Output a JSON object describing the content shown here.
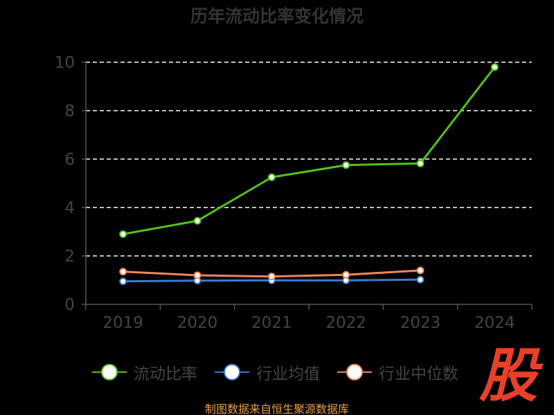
{
  "chart_data": {
    "type": "line",
    "title": "历年流动比率变化情况",
    "categories": [
      "2019",
      "2020",
      "2021",
      "2022",
      "2023",
      "2024"
    ],
    "ylim": [
      0,
      10
    ],
    "yticks": [
      "0",
      "2",
      "4",
      "6",
      "8",
      "10"
    ],
    "grid": true,
    "legend_position": "bottom",
    "series": [
      {
        "name": "流动比率",
        "color": "#52c41a",
        "values": [
          2.9,
          3.45,
          5.25,
          5.75,
          5.82,
          9.8
        ]
      },
      {
        "name": "行业均值",
        "color": "#3a7bd5",
        "values": [
          0.95,
          0.98,
          0.99,
          0.99,
          1.02,
          null
        ]
      },
      {
        "name": "行业中位数",
        "color": "#f0855a",
        "values": [
          1.35,
          1.2,
          1.15,
          1.22,
          1.4,
          null
        ]
      }
    ]
  },
  "legend": {
    "items": [
      {
        "label": "流动比率",
        "color": "#52c41a"
      },
      {
        "label": "行业均值",
        "color": "#3a7bd5"
      },
      {
        "label": "行业中位数",
        "color": "#f0855a"
      }
    ]
  },
  "footer": {
    "source": "制图数据来自恒生聚源数据库"
  },
  "watermark": {
    "glyph": "股",
    "color": "#e8402a"
  }
}
